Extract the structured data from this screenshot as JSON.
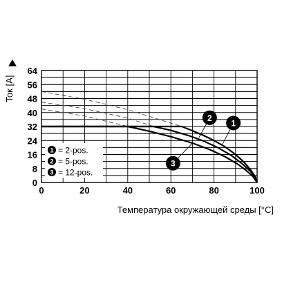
{
  "chart_data": {
    "type": "line",
    "title": "",
    "xlabel": "Температура окружающей среды [°C]",
    "ylabel": "Ток [A]",
    "xlim": [
      0,
      100
    ],
    "ylim": [
      0,
      64
    ],
    "x_ticks": [
      0,
      20,
      40,
      60,
      80,
      100
    ],
    "y_ticks": [
      0,
      8,
      16,
      24,
      32,
      40,
      48,
      56,
      64
    ],
    "grid": true,
    "series": [
      {
        "name": "2-pos.",
        "marker": "1",
        "color": "#000000",
        "x": [
          0,
          65,
          70,
          75,
          80,
          85,
          90,
          94,
          97,
          99,
          100
        ],
        "y": [
          32,
          32,
          29.6,
          27,
          24,
          20.5,
          16,
          11.5,
          7.2,
          3.5,
          0
        ],
        "derating_x": [
          0,
          20,
          40,
          65
        ],
        "derating_y": [
          52,
          47.6,
          41.6,
          32
        ]
      },
      {
        "name": "5-pos.",
        "marker": "2",
        "color": "#000000",
        "x": [
          0,
          52,
          60,
          68,
          75,
          82,
          88,
          93,
          97,
          99,
          100
        ],
        "y": [
          32,
          32,
          29.8,
          26.9,
          23.8,
          19.8,
          15.5,
          10.8,
          6.3,
          3,
          0
        ],
        "derating_x": [
          0,
          20,
          40,
          52
        ],
        "derating_y": [
          46,
          42.2,
          36.8,
          32
        ]
      },
      {
        "name": "12-pos.",
        "marker": "3",
        "color": "#000000",
        "x": [
          0,
          40,
          50,
          60,
          70,
          78,
          85,
          91,
          95,
          98,
          100
        ],
        "y": [
          32,
          32,
          29.3,
          26.2,
          22.5,
          18.8,
          14.8,
          10.5,
          6.8,
          3.5,
          0
        ],
        "derating_x": [
          0,
          20,
          40
        ],
        "derating_y": [
          42,
          38,
          32
        ]
      }
    ],
    "legend": {
      "placement": "bottom-left",
      "entries": [
        {
          "marker": "1",
          "separator": "=",
          "label": "2-pos."
        },
        {
          "marker": "2",
          "separator": "=",
          "label": "5-pos."
        },
        {
          "marker": "3",
          "separator": "=",
          "label": "12-pos."
        }
      ]
    },
    "annotations": [
      {
        "marker": "1",
        "x": 89,
        "y": 34
      },
      {
        "marker": "2",
        "x": 78,
        "y": 37
      },
      {
        "marker": "3",
        "x": 61,
        "y": 11
      }
    ]
  }
}
